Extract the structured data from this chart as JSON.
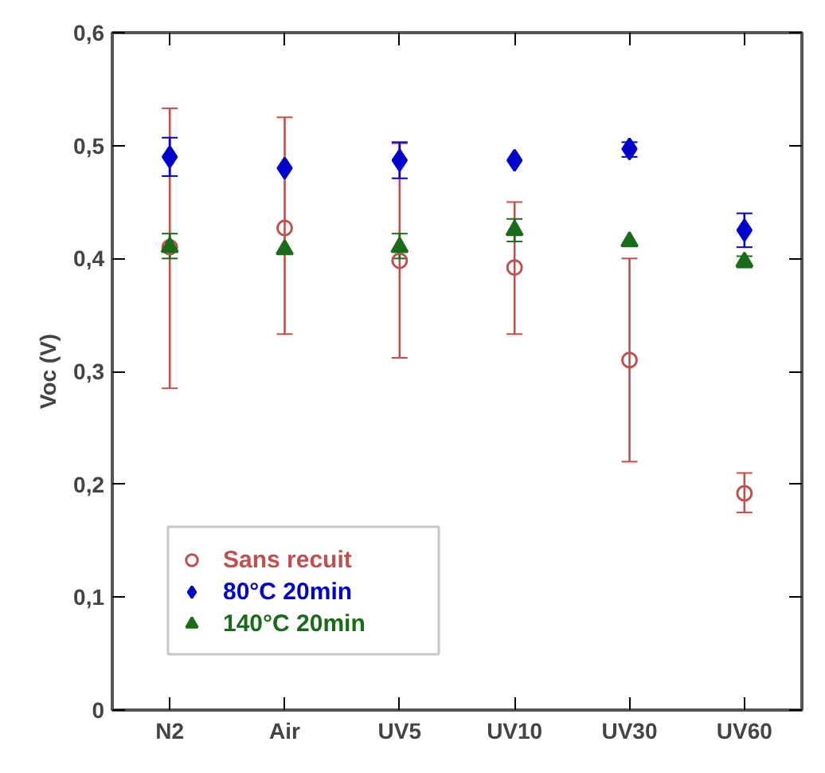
{
  "chart_data": {
    "type": "scatter",
    "ylabel": "Voc (V)",
    "categories": [
      "N2",
      "Air",
      "UV5",
      "UV10",
      "UV30",
      "UV60"
    ],
    "ylim": [
      0,
      0.6
    ],
    "yticks": [
      {
        "value": 0,
        "label": "0"
      },
      {
        "value": 0.1,
        "label": "0,1"
      },
      {
        "value": 0.2,
        "label": "0,2"
      },
      {
        "value": 0.3,
        "label": "0,3"
      },
      {
        "value": 0.4,
        "label": "0,4"
      },
      {
        "value": 0.5,
        "label": "0,5"
      },
      {
        "value": 0.6,
        "label": "0,6"
      }
    ],
    "grid": false,
    "legend": "bottom left",
    "series": [
      {
        "name": "Sans recuit",
        "color": "#c0504d",
        "marker": "circle_open",
        "values": [
          0.41,
          0.427,
          0.398,
          0.392,
          0.31,
          0.192
        ],
        "errors": [
          [
            0.285,
            0.533
          ],
          [
            0.333,
            0.525
          ],
          [
            0.312,
            0.502
          ],
          [
            0.333,
            0.45
          ],
          [
            0.22,
            0.4
          ],
          [
            0.175,
            0.21
          ]
        ]
      },
      {
        "name": "80°C 20min",
        "color": "#0000cc",
        "marker": "diamond",
        "values": [
          0.49,
          0.48,
          0.487,
          0.487,
          0.497,
          0.425
        ],
        "errors": [
          [
            0.473,
            0.507
          ],
          null,
          [
            0.471,
            0.503
          ],
          null,
          [
            0.49,
            0.503
          ],
          [
            0.41,
            0.44
          ]
        ]
      },
      {
        "name": "140°C 20min",
        "color": "#1a6b1a",
        "marker": "triangle",
        "values": [
          0.41,
          0.408,
          0.41,
          0.425,
          0.415,
          0.397
        ],
        "errors": [
          [
            0.4,
            0.422
          ],
          null,
          [
            0.4,
            0.422
          ],
          [
            0.415,
            0.435
          ],
          null,
          [
            0.392,
            0.402
          ]
        ]
      }
    ]
  }
}
